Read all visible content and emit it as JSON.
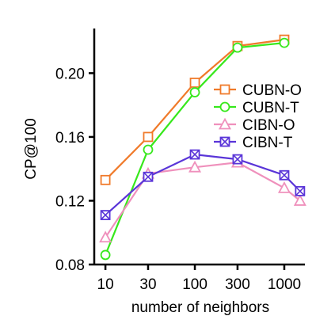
{
  "chart_data": {
    "type": "line",
    "title": "",
    "xlabel": "number of neighbors",
    "ylabel": "CP@100",
    "x_scale": "log",
    "x_ticks": [
      10,
      30,
      100,
      300,
      1000
    ],
    "x_tick_labels": [
      "10",
      "30",
      "100",
      "300",
      "1000"
    ],
    "xlim": [
      7.5,
      1700
    ],
    "y_ticks": [
      0.08,
      0.12,
      0.16,
      0.2
    ],
    "y_tick_labels": [
      "0.08",
      "0.12",
      "0.16",
      "0.20"
    ],
    "ylim": [
      0.08,
      0.228
    ],
    "grid": false,
    "legend_position": "right",
    "series": [
      {
        "name": "CUBN-O",
        "color": "#f07a2a",
        "marker": "square",
        "x": [
          10,
          30,
          100,
          300,
          1000
        ],
        "y": [
          0.133,
          0.16,
          0.194,
          0.217,
          0.221
        ]
      },
      {
        "name": "CUBN-T",
        "color": "#37e81c",
        "marker": "circle",
        "x": [
          10,
          30,
          100,
          300,
          1000
        ],
        "y": [
          0.086,
          0.152,
          0.188,
          0.216,
          0.219
        ]
      },
      {
        "name": "CIBN-O",
        "color": "#ef90bc",
        "marker": "triangle",
        "x": [
          10,
          30,
          100,
          300,
          1000,
          1500
        ],
        "y": [
          0.097,
          0.137,
          0.141,
          0.144,
          0.128,
          0.12
        ]
      },
      {
        "name": "CIBN-T",
        "color": "#5a35d8",
        "marker": "crossed-square",
        "x": [
          10,
          30,
          100,
          300,
          1000,
          1500
        ],
        "y": [
          0.111,
          0.135,
          0.149,
          0.146,
          0.136,
          0.126
        ]
      }
    ]
  }
}
